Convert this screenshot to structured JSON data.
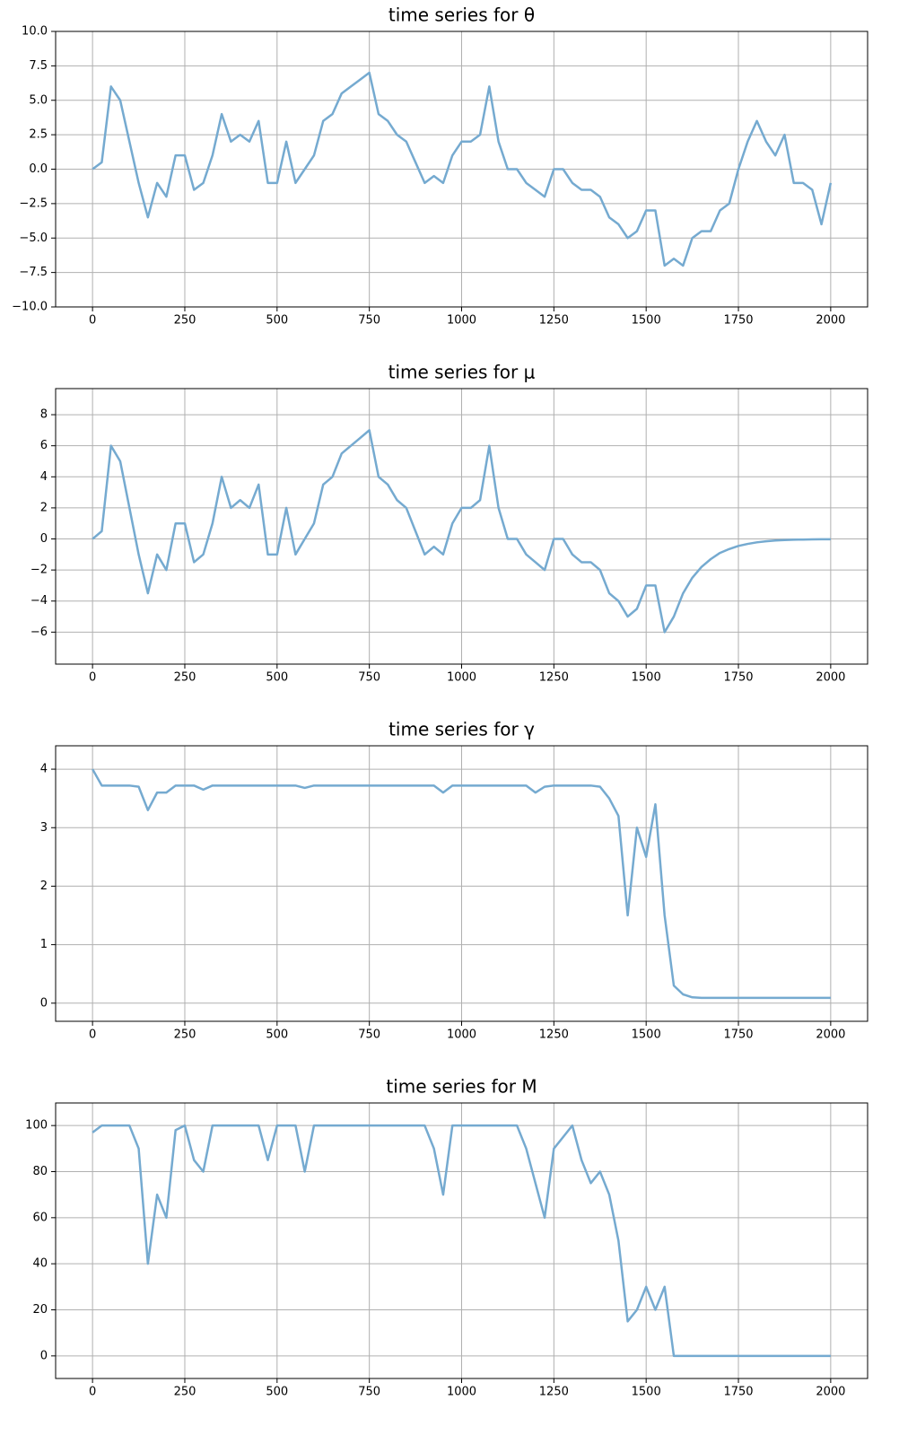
{
  "chart_data": [
    {
      "type": "line",
      "title": "time series for θ",
      "color": "#75aad0",
      "grid": true,
      "x": [
        0,
        25,
        50,
        75,
        100,
        125,
        150,
        175,
        200,
        225,
        250,
        275,
        300,
        325,
        350,
        375,
        400,
        425,
        450,
        475,
        500,
        525,
        550,
        575,
        600,
        625,
        650,
        675,
        700,
        725,
        750,
        775,
        800,
        825,
        850,
        875,
        900,
        925,
        950,
        975,
        1000,
        1025,
        1050,
        1075,
        1100,
        1125,
        1150,
        1175,
        1200,
        1225,
        1250,
        1275,
        1300,
        1325,
        1350,
        1375,
        1400,
        1425,
        1450,
        1475,
        1500,
        1525,
        1550,
        1575,
        1600,
        1625,
        1650,
        1675,
        1700,
        1725,
        1750,
        1775,
        1800,
        1825,
        1850,
        1875,
        1900,
        1925,
        1950,
        1975,
        2000
      ],
      "values": [
        0,
        0.5,
        6,
        5,
        2,
        -1,
        -3.5,
        -1,
        -2,
        1,
        1,
        -1.5,
        -1,
        1,
        4,
        2,
        2.5,
        2,
        3.5,
        -1,
        -1,
        2,
        -1,
        0,
        1,
        3.5,
        4,
        5.5,
        6,
        6.5,
        7,
        4,
        3.5,
        2.5,
        2,
        0.5,
        -1,
        -0.5,
        -1,
        1,
        2,
        2,
        2.5,
        6,
        2,
        0,
        0,
        -1,
        -1.5,
        -2,
        0,
        0,
        -1,
        -1.5,
        -1.5,
        -2,
        -3.5,
        -4,
        -5,
        -4.5,
        -3,
        -3,
        -7,
        -6.5,
        -7,
        -5,
        -4.5,
        -4.5,
        -3,
        -2.5,
        0,
        2,
        3.5,
        2,
        1,
        2.5,
        -1,
        -1,
        -1.5,
        -4,
        -1
      ],
      "xlim": [
        -100,
        2100
      ],
      "xticks": [
        0,
        250,
        500,
        750,
        1000,
        1250,
        1500,
        1750,
        2000
      ],
      "ylim": [
        -10,
        10
      ],
      "yticks": [
        {
          "value": -10,
          "label": "−10.0"
        },
        {
          "value": -7.5,
          "label": "−7.5"
        },
        {
          "value": -5,
          "label": "−5.0"
        },
        {
          "value": -2.5,
          "label": "−2.5"
        },
        {
          "value": 0,
          "label": "0.0"
        },
        {
          "value": 2.5,
          "label": "2.5"
        },
        {
          "value": 5,
          "label": "5.0"
        },
        {
          "value": 7.5,
          "label": "7.5"
        },
        {
          "value": 10,
          "label": "10.0"
        }
      ]
    },
    {
      "type": "line",
      "title": "time series for μ",
      "color": "#75aad0",
      "grid": true,
      "x": [
        0,
        25,
        50,
        75,
        100,
        125,
        150,
        175,
        200,
        225,
        250,
        275,
        300,
        325,
        350,
        375,
        400,
        425,
        450,
        475,
        500,
        525,
        550,
        575,
        600,
        625,
        650,
        675,
        700,
        725,
        750,
        775,
        800,
        825,
        850,
        875,
        900,
        925,
        950,
        975,
        1000,
        1025,
        1050,
        1075,
        1100,
        1125,
        1150,
        1175,
        1200,
        1225,
        1250,
        1275,
        1300,
        1325,
        1350,
        1375,
        1400,
        1425,
        1450,
        1475,
        1500,
        1525,
        1550,
        1575,
        1600,
        1625,
        1650,
        1675,
        1700,
        1725,
        1750,
        1775,
        1800,
        1825,
        1850,
        1875,
        1900,
        1925,
        1950,
        1975,
        2000
      ],
      "values": [
        0,
        0.5,
        6,
        5,
        2,
        -1,
        -3.5,
        -1,
        -2,
        1,
        1,
        -1.5,
        -1,
        1,
        4,
        2,
        2.5,
        2,
        3.5,
        -1,
        -1,
        2,
        -1,
        0,
        1,
        3.5,
        4,
        5.5,
        6,
        6.5,
        7,
        4,
        3.5,
        2.5,
        2,
        0.5,
        -1,
        -0.5,
        -1,
        1,
        2,
        2,
        2.5,
        6,
        2,
        0,
        0,
        -1,
        -1.5,
        -2,
        0,
        0,
        -1,
        -1.5,
        -1.5,
        -2,
        -3.5,
        -4,
        -5,
        -4.5,
        -3,
        -3,
        -6,
        -5,
        -3.5,
        -2.5,
        -1.8,
        -1.3,
        -0.9,
        -0.65,
        -0.45,
        -0.32,
        -0.22,
        -0.15,
        -0.1,
        -0.07,
        -0.05,
        -0.04,
        -0.03,
        -0.02,
        -0.02
      ],
      "xlim": [
        -100,
        2100
      ],
      "xticks": [
        0,
        250,
        500,
        750,
        1000,
        1250,
        1500,
        1750,
        2000
      ],
      "ylim": [
        -8.06,
        9.68
      ],
      "yticks": [
        {
          "value": -6,
          "label": "−6"
        },
        {
          "value": -4,
          "label": "−4"
        },
        {
          "value": -2,
          "label": "−2"
        },
        0,
        2,
        4,
        6,
        8
      ]
    },
    {
      "type": "line",
      "title": "time series for γ",
      "color": "#75aad0",
      "grid": true,
      "x": [
        0,
        25,
        50,
        75,
        100,
        125,
        150,
        175,
        200,
        225,
        250,
        275,
        300,
        325,
        350,
        375,
        400,
        425,
        450,
        475,
        500,
        525,
        550,
        575,
        600,
        625,
        650,
        675,
        700,
        725,
        750,
        775,
        800,
        825,
        850,
        875,
        900,
        925,
        950,
        975,
        1000,
        1025,
        1050,
        1075,
        1100,
        1125,
        1150,
        1175,
        1200,
        1225,
        1250,
        1275,
        1300,
        1325,
        1350,
        1375,
        1400,
        1425,
        1450,
        1475,
        1500,
        1525,
        1550,
        1575,
        1600,
        1625,
        1650,
        1675,
        1700,
        1725,
        1750,
        1775,
        1800,
        1825,
        1850,
        1875,
        1900,
        1925,
        1950,
        1975,
        2000
      ],
      "values": [
        4,
        3.72,
        3.72,
        3.72,
        3.72,
        3.7,
        3.3,
        3.6,
        3.6,
        3.72,
        3.72,
        3.72,
        3.65,
        3.72,
        3.72,
        3.72,
        3.72,
        3.72,
        3.72,
        3.72,
        3.72,
        3.72,
        3.72,
        3.68,
        3.72,
        3.72,
        3.72,
        3.72,
        3.72,
        3.72,
        3.72,
        3.72,
        3.72,
        3.72,
        3.72,
        3.72,
        3.72,
        3.72,
        3.6,
        3.72,
        3.72,
        3.72,
        3.72,
        3.72,
        3.72,
        3.72,
        3.72,
        3.72,
        3.6,
        3.7,
        3.72,
        3.72,
        3.72,
        3.72,
        3.72,
        3.7,
        3.5,
        3.2,
        1.5,
        3,
        2.5,
        3.4,
        1.5,
        0.3,
        0.15,
        0.1,
        0.09,
        0.09,
        0.09,
        0.09,
        0.09,
        0.09,
        0.09,
        0.09,
        0.09,
        0.09,
        0.09,
        0.09,
        0.09,
        0.09,
        0.09
      ],
      "xlim": [
        -100,
        2100
      ],
      "xticks": [
        0,
        250,
        500,
        750,
        1000,
        1250,
        1500,
        1750,
        2000
      ],
      "ylim": [
        -0.31,
        4.4
      ],
      "yticks": [
        0,
        1,
        2,
        3,
        4
      ]
    },
    {
      "type": "line",
      "title": "time series for M",
      "color": "#75aad0",
      "grid": true,
      "x": [
        0,
        25,
        50,
        75,
        100,
        125,
        150,
        175,
        200,
        225,
        250,
        275,
        300,
        325,
        350,
        375,
        400,
        425,
        450,
        475,
        500,
        525,
        550,
        575,
        600,
        625,
        650,
        675,
        700,
        725,
        750,
        775,
        800,
        825,
        850,
        875,
        900,
        925,
        950,
        975,
        1000,
        1025,
        1050,
        1075,
        1100,
        1125,
        1150,
        1175,
        1200,
        1225,
        1250,
        1275,
        1300,
        1325,
        1350,
        1375,
        1400,
        1425,
        1450,
        1475,
        1500,
        1525,
        1550,
        1575,
        1600,
        1625,
        1650,
        1675,
        1700,
        1725,
        1750,
        1775,
        1800,
        1825,
        1850,
        1875,
        1900,
        1925,
        1950,
        1975,
        2000
      ],
      "values": [
        97,
        100,
        100,
        100,
        100,
        90,
        40,
        70,
        60,
        98,
        100,
        85,
        80,
        100,
        100,
        100,
        100,
        100,
        100,
        85,
        100,
        100,
        100,
        80,
        100,
        100,
        100,
        100,
        100,
        100,
        100,
        100,
        100,
        100,
        100,
        100,
        100,
        90,
        70,
        100,
        100,
        100,
        100,
        100,
        100,
        100,
        100,
        90,
        75,
        60,
        90,
        95,
        100,
        85,
        75,
        80,
        70,
        50,
        15,
        20,
        30,
        20,
        30,
        0,
        0,
        0,
        0,
        0,
        0,
        0,
        0,
        0,
        0,
        0,
        0,
        0,
        0,
        0,
        0,
        0,
        0
      ],
      "xlim": [
        -100,
        2100
      ],
      "xticks": [
        0,
        250,
        500,
        750,
        1000,
        1250,
        1500,
        1750,
        2000
      ],
      "ylim": [
        -9.8,
        109.8
      ],
      "yticks": [
        0,
        20,
        40,
        60,
        80,
        100
      ]
    }
  ]
}
